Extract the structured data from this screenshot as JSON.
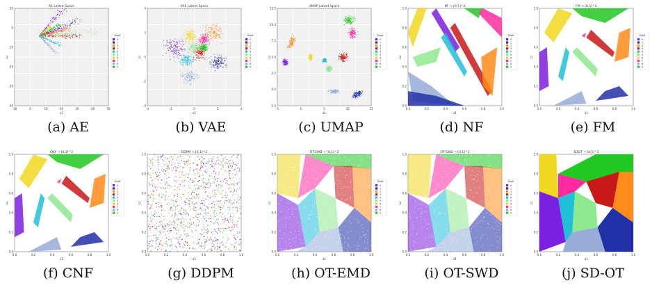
{
  "figure": {
    "captions": [
      "(a) AE",
      "(b) VAE",
      "(c) UMAP",
      "(d) NF",
      "(e) FM",
      "(f) CNF",
      "(g) DDPM",
      "(h) OT-EMD",
      "(i) OT-SWD",
      "(j) SD-OT"
    ]
  },
  "legend": {
    "title": "Digit",
    "labels": [
      "0",
      "1",
      "2",
      "3",
      "4",
      "5",
      "6",
      "7",
      "8",
      "9"
    ],
    "colors": [
      "#7b1fe0",
      "#2230a8",
      "#ff8c1a",
      "#c81818",
      "#22c0d8",
      "#8ee88e",
      "#f0d820",
      "#ff2aa0",
      "#98acd8",
      "#22c822"
    ]
  },
  "chart_data": [
    {
      "type": "scatter",
      "title": "AE Latent Space",
      "xlabel": "z1",
      "ylabel": "z2",
      "xlim": [
        -15,
        35
      ],
      "ylim": [
        -45,
        18
      ],
      "xticks": [
        "-10",
        "0",
        "10",
        "20",
        "30",
        "40",
        "50"
      ],
      "yticks": [
        "10",
        "0",
        "-10",
        "-20",
        "-30",
        "-40"
      ],
      "grid": true,
      "legend": "right"
    },
    {
      "type": "scatter",
      "title": "VAE Latent Space",
      "xlabel": "z1",
      "ylabel": "z2",
      "xlim": [
        -5,
        5
      ],
      "ylim": [
        -5,
        5
      ],
      "xticks": [
        "-4",
        "-2",
        "0",
        "2",
        "4"
      ],
      "yticks": [
        "4",
        "2",
        "0",
        "-2",
        "-4"
      ],
      "grid": true,
      "legend": "right"
    },
    {
      "type": "scatter",
      "title": "UMAP Latent Space",
      "xlabel": "z1",
      "ylabel": "z2",
      "xlim": [
        -5,
        17
      ],
      "ylim": [
        -3,
        14
      ],
      "xticks": [
        "-5",
        "0",
        "5",
        "10",
        "15"
      ],
      "yticks": [
        "12.5",
        "10.0",
        "7.5",
        "5.0",
        "2.5",
        "0.0",
        "-2.5"
      ],
      "grid": true,
      "legend": "right"
    },
    {
      "type": "scatter",
      "title": "NF → [0,1]^2",
      "xlabel": "z1",
      "ylabel": "z2",
      "xlim": [
        0,
        1
      ],
      "ylim": [
        0,
        1
      ],
      "xticks": [
        "0.0",
        "0.2",
        "0.4",
        "0.6",
        "0.8",
        "1.0"
      ],
      "yticks": [
        "1.0",
        "0.8",
        "0.6",
        "0.4",
        "0.2",
        "0.0"
      ],
      "grid": false,
      "legend": "right"
    },
    {
      "type": "scatter",
      "title": "FM → [0,1]^2",
      "xlabel": "z1",
      "ylabel": "z2",
      "xlim": [
        0,
        1
      ],
      "ylim": [
        0,
        1
      ],
      "xticks": [
        "0.0",
        "0.2",
        "0.4",
        "0.6",
        "0.8",
        "1.0"
      ],
      "yticks": [
        "1.0",
        "0.8",
        "0.6",
        "0.4",
        "0.2",
        "0.0"
      ],
      "grid": false,
      "legend": "right"
    },
    {
      "type": "scatter",
      "title": "CNF → [0,1]^2",
      "xlabel": "z1",
      "ylabel": "z2",
      "xlim": [
        0,
        1
      ],
      "ylim": [
        0,
        1
      ],
      "xticks": [
        "0.0",
        "0.2",
        "0.4",
        "0.6",
        "0.8",
        "1.0"
      ],
      "yticks": [
        "1.0",
        "0.8",
        "0.6",
        "0.4",
        "0.2",
        "0.0"
      ],
      "grid": false,
      "legend": "right"
    },
    {
      "type": "scatter",
      "title": "DDPM → [0,1]^2",
      "xlabel": "z1",
      "ylabel": "z2",
      "xlim": [
        0,
        1
      ],
      "ylim": [
        0,
        1
      ],
      "xticks": [
        "0.0",
        "0.2",
        "0.4",
        "0.6",
        "0.8",
        "1.0"
      ],
      "yticks": [
        "1.0",
        "0.8",
        "0.6",
        "0.4",
        "0.2",
        "0.0"
      ],
      "grid": false,
      "legend": "none"
    },
    {
      "type": "scatter",
      "title": "OT-EMD → [0,1]^2",
      "xlabel": "z1",
      "ylabel": "z2",
      "xlim": [
        0,
        1
      ],
      "ylim": [
        0,
        1
      ],
      "xticks": [
        "0.0",
        "0.2",
        "0.4",
        "0.6",
        "0.8",
        "1.0"
      ],
      "yticks": [
        "1.0",
        "0.8",
        "0.6",
        "0.4",
        "0.2",
        "0.0"
      ],
      "grid": false,
      "legend": "right"
    },
    {
      "type": "scatter",
      "title": "OT-SWD → [0,1]^2",
      "xlabel": "z1",
      "ylabel": "z2",
      "xlim": [
        0,
        1
      ],
      "ylim": [
        0,
        1
      ],
      "xticks": [
        "0.0",
        "0.2",
        "0.4",
        "0.6",
        "0.8",
        "1.0"
      ],
      "yticks": [
        "1.0",
        "0.8",
        "0.6",
        "0.4",
        "0.2",
        "0.0"
      ],
      "grid": false,
      "legend": "right"
    },
    {
      "type": "scatter",
      "title": "SDOT → [0,1]^2",
      "xlabel": "z1",
      "ylabel": "z2",
      "xlim": [
        0,
        1
      ],
      "ylim": [
        0,
        1
      ],
      "xticks": [
        "0.0",
        "0.2",
        "0.4",
        "0.6",
        "0.8",
        "1.0"
      ],
      "yticks": [
        "1.0",
        "0.8",
        "0.6",
        "0.4",
        "0.2",
        "0.0"
      ],
      "grid": false,
      "legend": "none"
    }
  ]
}
